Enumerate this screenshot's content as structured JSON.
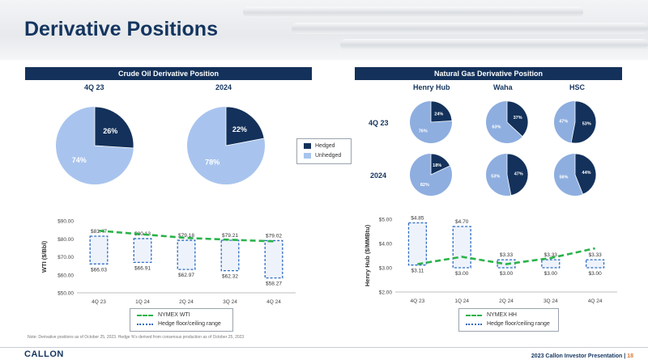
{
  "header": {
    "title": "Derivative Positions"
  },
  "oil": {
    "band": "Crude Oil Derivative Position",
    "pie_labels": [
      "4Q 23",
      "2024"
    ],
    "legend": [
      "Hedged",
      "Unhedged"
    ],
    "line_legend": [
      "NYMEX WTI",
      "Hedge floor/ceiling range"
    ]
  },
  "gas": {
    "band": "Natural Gas Derivative Position",
    "columns": [
      "Henry Hub",
      "Waha",
      "HSC"
    ],
    "rows": [
      "4Q 23",
      "2024"
    ],
    "line_legend": [
      "NYMEX HH",
      "Hedge floor/ceiling range"
    ]
  },
  "colors": {
    "hedged": "#13315a",
    "unhedged": "#a8c4ee",
    "unhedged_gas": "#8eaee0",
    "strip": "#2ab34a",
    "range": "#2f6cc2",
    "navy": "#14355f"
  },
  "chart_data": [
    {
      "type": "pie",
      "name": "Crude Oil 4Q 23",
      "labels": [
        "Hedged",
        "Unhedged"
      ],
      "values": [
        26,
        74
      ],
      "value_labels": [
        "26%",
        "74%"
      ]
    },
    {
      "type": "pie",
      "name": "Crude Oil 2024",
      "labels": [
        "Hedged",
        "Unhedged"
      ],
      "values": [
        22,
        78
      ],
      "value_labels": [
        "22%",
        "78%"
      ]
    },
    {
      "type": "pie",
      "name": "Henry Hub 4Q 23",
      "labels": [
        "Hedged",
        "Unhedged"
      ],
      "values": [
        24,
        76
      ],
      "value_labels": [
        "24%",
        "76%"
      ]
    },
    {
      "type": "pie",
      "name": "Waha 4Q 23",
      "labels": [
        "Hedged",
        "Unhedged"
      ],
      "values": [
        37,
        63
      ],
      "value_labels": [
        "37%",
        "63%"
      ]
    },
    {
      "type": "pie",
      "name": "HSC 4Q 23",
      "labels": [
        "Hedged",
        "Unhedged"
      ],
      "values": [
        53,
        47
      ],
      "value_labels": [
        "53%",
        "47%"
      ]
    },
    {
      "type": "pie",
      "name": "Henry Hub 2024",
      "labels": [
        "Hedged",
        "Unhedged"
      ],
      "values": [
        18,
        82
      ],
      "value_labels": [
        "18%",
        "82%"
      ]
    },
    {
      "type": "pie",
      "name": "Waha 2024",
      "labels": [
        "Hedged",
        "Unhedged"
      ],
      "values": [
        47,
        53
      ],
      "value_labels": [
        "47%",
        "53%"
      ]
    },
    {
      "type": "pie",
      "name": "HSC 2024",
      "labels": [
        "Hedged",
        "Unhedged"
      ],
      "values": [
        44,
        56
      ],
      "value_labels": [
        "44%",
        "56%"
      ]
    },
    {
      "type": "line",
      "name": "Crude Oil strip vs hedge range",
      "categories": [
        "4Q 23",
        "1Q 24",
        "2Q 24",
        "3Q 24",
        "4Q 24"
      ],
      "ylabel": "WTI ($/Bbl)",
      "ylim": [
        50,
        90
      ],
      "yticks": [
        "$50.00",
        "$60.00",
        "$70.00",
        "$80.00",
        "$90.00"
      ],
      "series": [
        {
          "name": "NYMEX WTI",
          "values": [
            84.5,
            82.5,
            80.5,
            79.5,
            78.6
          ]
        }
      ],
      "ranges": {
        "name": "Hedge floor/ceiling range",
        "ceiling": [
          81.47,
          80.13,
          79.18,
          79.21,
          79.02
        ],
        "floor": [
          66.03,
          66.91,
          62.97,
          62.32,
          58.27
        ],
        "ceiling_labels": [
          "$81.47",
          "$80.13",
          "$79.18",
          "$79.21",
          "$79.02"
        ],
        "floor_labels": [
          "$66.03",
          "$66.91",
          "$62.97",
          "$62.32",
          "$58.27"
        ]
      }
    },
    {
      "type": "line",
      "name": "Natural Gas strip vs hedge range",
      "categories": [
        "4Q 23",
        "1Q 24",
        "2Q 24",
        "3Q 24",
        "4Q 24"
      ],
      "ylabel": "Henry Hub ($/MMBtu)",
      "ylim": [
        2,
        5
      ],
      "yticks": [
        "$2.00",
        "$3.00",
        "$4.00",
        "$5.00"
      ],
      "series": [
        {
          "name": "NYMEX HH",
          "values": [
            3.15,
            3.45,
            3.15,
            3.4,
            3.8
          ]
        }
      ],
      "ranges": {
        "name": "Hedge floor/ceiling range",
        "ceiling": [
          4.85,
          4.7,
          3.33,
          3.33,
          3.33
        ],
        "floor": [
          3.11,
          3.0,
          3.0,
          3.0,
          3.0
        ],
        "ceiling_labels": [
          "$4.85",
          "$4.70",
          "$3.33",
          "$3.33",
          "$3.33"
        ],
        "floor_labels": [
          "$3.11",
          "$3.00",
          "$3.00",
          "$3.00",
          "$3.00"
        ]
      }
    }
  ],
  "note": "Note: Derivative positions as of October 25, 2023. Hedge %'s derived from consensus production as of October 25, 2023",
  "footer": {
    "logo": "CALLON",
    "text": "2023 Callon Investor Presentation |",
    "page": "18"
  }
}
